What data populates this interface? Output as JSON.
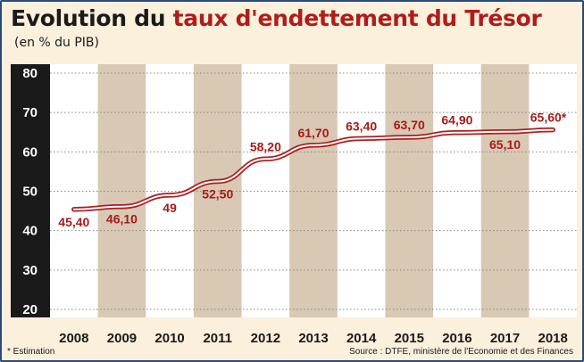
{
  "header": {
    "title_part1": "Evolution du ",
    "title_part2": "taux d'endettement du Trésor",
    "subtitle": "(en % du PIB)"
  },
  "footer": {
    "note": "* Estimation",
    "source": "Source : DTFE, ministère de l'Economie et des Finances"
  },
  "colors": {
    "accent": "#b01c1c",
    "band": "#d8c8b4",
    "background": "#fbf0dc",
    "axis_strip": "#1a1a1a"
  },
  "chart_data": {
    "type": "line",
    "title": "Evolution du taux d'endettement du Trésor",
    "subtitle": "(en % du PIB)",
    "xlabel": "",
    "ylabel": "",
    "categories": [
      "2008",
      "2009",
      "2010",
      "2011",
      "2012",
      "2013",
      "2014",
      "2015",
      "2016",
      "2017",
      "2018"
    ],
    "series": [
      {
        "values": [
          45.4,
          46.1,
          49,
          52.5,
          58.2,
          61.7,
          63.4,
          63.7,
          64.9,
          65.1,
          65.6
        ],
        "labels": [
          "45,40",
          "46,10",
          "49",
          "52,50",
          "58,20",
          "61,70",
          "63,40",
          "63,70",
          "64,90",
          "65,10",
          "65,60*"
        ],
        "label_position": [
          "below",
          "below",
          "below",
          "below",
          "above",
          "above",
          "above",
          "above",
          "above",
          "below",
          "above"
        ]
      }
    ],
    "ylim": [
      20,
      80
    ],
    "yticks": [
      20,
      30,
      40,
      50,
      60,
      70,
      80
    ],
    "ytick_labels": [
      "20",
      "30",
      "40",
      "50",
      "60",
      "70",
      "80"
    ],
    "grid": true,
    "legend": "none"
  }
}
